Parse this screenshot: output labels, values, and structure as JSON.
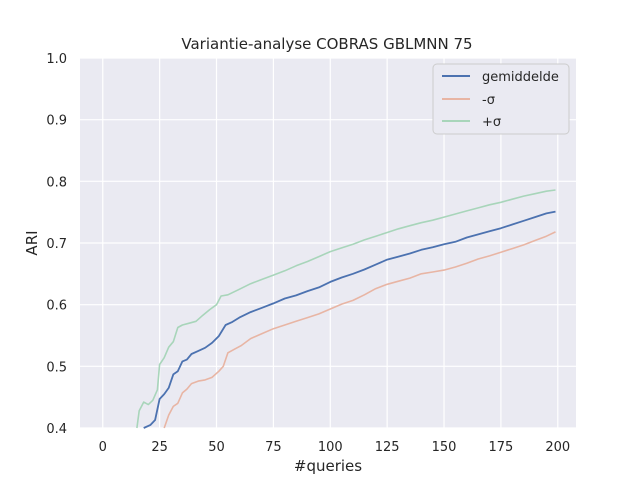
{
  "chart_data": {
    "type": "line",
    "title": "Variantie-analyse COBRAS GBLMNN 75",
    "xlabel": "#queries",
    "ylabel": "ARI",
    "xlim": [
      -10,
      208
    ],
    "ylim": [
      0.4,
      1.0
    ],
    "x_ticks": [
      "0",
      "25",
      "50",
      "75",
      "100",
      "125",
      "150",
      "175",
      "200"
    ],
    "y_ticks": [
      "0.4",
      "0.5",
      "0.6",
      "0.7",
      "0.8",
      "0.9",
      "1.0"
    ],
    "grid": true,
    "legend_position": "top-right",
    "series": [
      {
        "name": "gemiddelde",
        "color": "#4c72b0",
        "points": [
          [
            18,
            0.4
          ],
          [
            21,
            0.405
          ],
          [
            23,
            0.413
          ],
          [
            25,
            0.447
          ],
          [
            27,
            0.455
          ],
          [
            29,
            0.465
          ],
          [
            31,
            0.487
          ],
          [
            33,
            0.492
          ],
          [
            35,
            0.508
          ],
          [
            37,
            0.511
          ],
          [
            39,
            0.52
          ],
          [
            42,
            0.525
          ],
          [
            45,
            0.53
          ],
          [
            48,
            0.538
          ],
          [
            51,
            0.549
          ],
          [
            54,
            0.567
          ],
          [
            57,
            0.572
          ],
          [
            60,
            0.579
          ],
          [
            65,
            0.588
          ],
          [
            70,
            0.595
          ],
          [
            75,
            0.602
          ],
          [
            80,
            0.61
          ],
          [
            85,
            0.615
          ],
          [
            90,
            0.622
          ],
          [
            95,
            0.628
          ],
          [
            100,
            0.637
          ],
          [
            105,
            0.644
          ],
          [
            110,
            0.65
          ],
          [
            115,
            0.657
          ],
          [
            120,
            0.665
          ],
          [
            125,
            0.673
          ],
          [
            130,
            0.678
          ],
          [
            135,
            0.683
          ],
          [
            140,
            0.689
          ],
          [
            145,
            0.693
          ],
          [
            150,
            0.698
          ],
          [
            155,
            0.702
          ],
          [
            160,
            0.709
          ],
          [
            165,
            0.714
          ],
          [
            170,
            0.719
          ],
          [
            175,
            0.724
          ],
          [
            180,
            0.73
          ],
          [
            185,
            0.736
          ],
          [
            190,
            0.742
          ],
          [
            195,
            0.748
          ],
          [
            199,
            0.751
          ]
        ]
      },
      {
        "name": "-σ",
        "color": "#e8b5a4",
        "points": [
          [
            27,
            0.4
          ],
          [
            29,
            0.421
          ],
          [
            31,
            0.435
          ],
          [
            33,
            0.44
          ],
          [
            35,
            0.457
          ],
          [
            37,
            0.463
          ],
          [
            39,
            0.472
          ],
          [
            42,
            0.476
          ],
          [
            45,
            0.478
          ],
          [
            48,
            0.482
          ],
          [
            51,
            0.492
          ],
          [
            53,
            0.5
          ],
          [
            55,
            0.522
          ],
          [
            58,
            0.528
          ],
          [
            61,
            0.534
          ],
          [
            65,
            0.545
          ],
          [
            70,
            0.553
          ],
          [
            75,
            0.561
          ],
          [
            80,
            0.567
          ],
          [
            85,
            0.573
          ],
          [
            90,
            0.579
          ],
          [
            95,
            0.585
          ],
          [
            100,
            0.593
          ],
          [
            105,
            0.601
          ],
          [
            110,
            0.607
          ],
          [
            115,
            0.616
          ],
          [
            120,
            0.626
          ],
          [
            125,
            0.633
          ],
          [
            130,
            0.638
          ],
          [
            135,
            0.643
          ],
          [
            140,
            0.65
          ],
          [
            145,
            0.653
          ],
          [
            150,
            0.656
          ],
          [
            155,
            0.661
          ],
          [
            160,
            0.667
          ],
          [
            165,
            0.674
          ],
          [
            170,
            0.679
          ],
          [
            175,
            0.685
          ],
          [
            180,
            0.691
          ],
          [
            185,
            0.697
          ],
          [
            190,
            0.704
          ],
          [
            195,
            0.711
          ],
          [
            199,
            0.718
          ]
        ]
      },
      {
        "name": "+σ",
        "color": "#a8d5ba",
        "points": [
          [
            15,
            0.4
          ],
          [
            16,
            0.428
          ],
          [
            18,
            0.442
          ],
          [
            20,
            0.438
          ],
          [
            22,
            0.445
          ],
          [
            24,
            0.462
          ],
          [
            25,
            0.503
          ],
          [
            27,
            0.514
          ],
          [
            29,
            0.531
          ],
          [
            31,
            0.54
          ],
          [
            33,
            0.563
          ],
          [
            35,
            0.567
          ],
          [
            38,
            0.57
          ],
          [
            41,
            0.573
          ],
          [
            44,
            0.583
          ],
          [
            47,
            0.592
          ],
          [
            50,
            0.6
          ],
          [
            52,
            0.614
          ],
          [
            55,
            0.616
          ],
          [
            60,
            0.625
          ],
          [
            65,
            0.634
          ],
          [
            70,
            0.641
          ],
          [
            75,
            0.648
          ],
          [
            80,
            0.655
          ],
          [
            85,
            0.663
          ],
          [
            90,
            0.67
          ],
          [
            95,
            0.678
          ],
          [
            100,
            0.686
          ],
          [
            105,
            0.692
          ],
          [
            110,
            0.698
          ],
          [
            115,
            0.705
          ],
          [
            120,
            0.711
          ],
          [
            125,
            0.717
          ],
          [
            130,
            0.723
          ],
          [
            135,
            0.728
          ],
          [
            140,
            0.733
          ],
          [
            145,
            0.737
          ],
          [
            150,
            0.742
          ],
          [
            155,
            0.747
          ],
          [
            160,
            0.752
          ],
          [
            165,
            0.757
          ],
          [
            170,
            0.762
          ],
          [
            175,
            0.766
          ],
          [
            180,
            0.771
          ],
          [
            185,
            0.776
          ],
          [
            190,
            0.78
          ],
          [
            195,
            0.784
          ],
          [
            199,
            0.786
          ]
        ]
      }
    ]
  }
}
